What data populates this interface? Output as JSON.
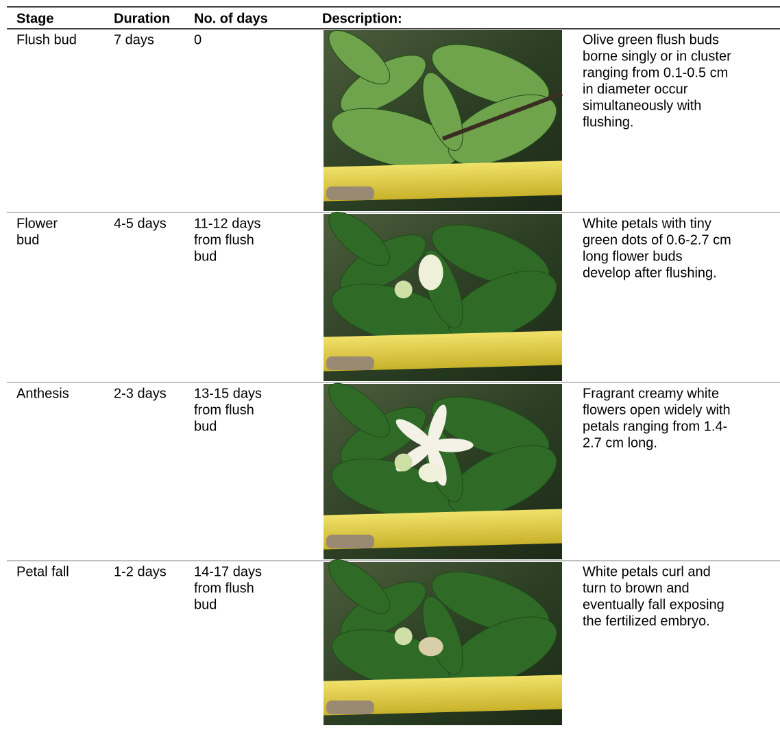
{
  "table": {
    "headers": [
      "Stage",
      "Duration",
      "No. of days",
      "Description:"
    ],
    "rows": [
      {
        "stage": [
          "Flush bud"
        ],
        "duration": "7 days",
        "days": [
          "0"
        ],
        "description": [
          "Olive green flush buds",
          "borne singly or in cluster",
          "ranging from 0.1-0.5 cm",
          "in diameter occur",
          "simultaneously with",
          "flushing."
        ]
      },
      {
        "stage": [
          "Flower",
          "bud"
        ],
        "duration": "4-5 days",
        "days": [
          "11-12 days",
          "from flush",
          "bud"
        ],
        "description": [
          "White petals with tiny",
          "green dots of 0.6-2.7 cm",
          "long flower buds",
          "develop after flushing."
        ]
      },
      {
        "stage": [
          "Anthesis"
        ],
        "duration": "2-3 days",
        "days": [
          "13-15 days",
          "from flush",
          "bud"
        ],
        "description": [
          "Fragrant creamy white",
          "flowers open widely with",
          "petals ranging from 1.4-",
          "2.7 cm long."
        ]
      },
      {
        "stage": [
          "Petal fall"
        ],
        "duration": "1-2 days",
        "days": [
          "14-17 days",
          "from flush",
          "bud"
        ],
        "description": [
          "White petals curl and",
          "turn to brown and",
          "eventually fall exposing",
          "the fertilized  embryo."
        ]
      }
    ]
  }
}
